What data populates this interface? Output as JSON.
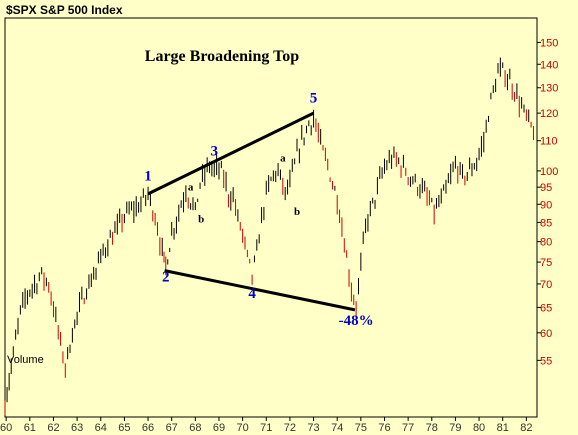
{
  "header": {
    "title": "$SPX S&P 500 Index"
  },
  "volume_label": "Volume",
  "colors": {
    "background": "#ffffc8",
    "plot_border": "#000000",
    "bars": "#000000",
    "down_bars": "#cc0000",
    "annotation": "#0000cc",
    "trendline": "#000000",
    "axis_text": "#cc0000",
    "xaxis_text": "#333333"
  },
  "chart_data": {
    "type": "bar",
    "title": "Large Broadening Top",
    "y_scale": "log",
    "ylim": [
      46,
      162
    ],
    "xlim": [
      59.95,
      82.45
    ],
    "x_ticks": [
      60,
      61,
      62,
      63,
      64,
      65,
      66,
      67,
      68,
      69,
      70,
      71,
      72,
      73,
      74,
      75,
      76,
      77,
      78,
      79,
      80,
      81,
      82
    ],
    "y_ticks": [
      55,
      60,
      65,
      70,
      75,
      80,
      85,
      90,
      95,
      100,
      110,
      120,
      130,
      140,
      150
    ],
    "series": [
      {
        "values": [
          [
            59.95,
            48
          ],
          [
            60.3,
            56
          ],
          [
            60.6,
            64
          ],
          [
            60.9,
            68
          ],
          [
            61.2,
            70
          ],
          [
            61.5,
            72
          ],
          [
            61.8,
            70
          ],
          [
            62.0,
            65
          ],
          [
            62.3,
            58
          ],
          [
            62.5,
            54
          ],
          [
            62.8,
            60
          ],
          [
            63.1,
            65
          ],
          [
            63.4,
            69
          ],
          [
            63.7,
            72
          ],
          [
            64.0,
            76
          ],
          [
            64.3,
            80
          ],
          [
            64.6,
            82
          ],
          [
            64.9,
            86
          ],
          [
            65.2,
            88
          ],
          [
            65.5,
            89
          ],
          [
            65.8,
            91
          ],
          [
            66.0,
            93
          ],
          [
            66.2,
            89
          ],
          [
            66.4,
            84
          ],
          [
            66.6,
            77
          ],
          [
            66.75,
            74
          ],
          [
            67.0,
            82
          ],
          [
            67.2,
            86
          ],
          [
            67.4,
            90
          ],
          [
            67.6,
            94
          ],
          [
            67.8,
            91
          ],
          [
            68.0,
            88
          ],
          [
            68.2,
            96
          ],
          [
            68.4,
            99
          ],
          [
            68.6,
            102
          ],
          [
            68.8,
            100
          ],
          [
            69.0,
            101
          ],
          [
            69.2,
            98
          ],
          [
            69.4,
            93
          ],
          [
            69.6,
            92
          ],
          [
            69.8,
            86
          ],
          [
            70.0,
            82
          ],
          [
            70.2,
            76
          ],
          [
            70.4,
            72
          ],
          [
            70.6,
            77
          ],
          [
            70.8,
            86
          ],
          [
            71.0,
            93
          ],
          [
            71.2,
            97
          ],
          [
            71.4,
            100
          ],
          [
            71.6,
            98
          ],
          [
            71.8,
            93
          ],
          [
            72.0,
            96
          ],
          [
            72.2,
            102
          ],
          [
            72.4,
            108
          ],
          [
            72.6,
            112
          ],
          [
            72.8,
            116
          ],
          [
            73.0,
            118
          ],
          [
            73.2,
            112
          ],
          [
            73.4,
            106
          ],
          [
            73.6,
            102
          ],
          [
            73.8,
            96
          ],
          [
            74.0,
            92
          ],
          [
            74.2,
            84
          ],
          [
            74.4,
            76
          ],
          [
            74.6,
            69
          ],
          [
            74.8,
            65
          ],
          [
            75.0,
            74
          ],
          [
            75.2,
            84
          ],
          [
            75.4,
            88
          ],
          [
            75.6,
            92
          ],
          [
            75.8,
            97
          ],
          [
            76.0,
            101
          ],
          [
            76.3,
            104
          ],
          [
            76.6,
            103
          ],
          [
            76.9,
            100
          ],
          [
            77.2,
            97
          ],
          [
            77.5,
            95
          ],
          [
            77.8,
            92
          ],
          [
            78.1,
            88
          ],
          [
            78.4,
            91
          ],
          [
            78.7,
            96
          ],
          [
            79.0,
            102
          ],
          [
            79.3,
            98
          ],
          [
            79.6,
            100
          ],
          [
            79.9,
            103
          ],
          [
            80.2,
            110
          ],
          [
            80.5,
            125
          ],
          [
            80.8,
            136
          ],
          [
            81.0,
            137
          ],
          [
            81.3,
            133
          ],
          [
            81.6,
            127
          ],
          [
            81.9,
            120
          ],
          [
            82.2,
            115
          ],
          [
            82.4,
            112
          ]
        ]
      }
    ],
    "annotations": [
      {
        "text": "1",
        "x": 66.0,
        "y": 97
      },
      {
        "text": "2",
        "x": 66.75,
        "y": 70.5
      },
      {
        "text": "3",
        "x": 68.8,
        "y": 105
      },
      {
        "text": "4",
        "x": 70.4,
        "y": 67
      },
      {
        "text": "5",
        "x": 73.0,
        "y": 124
      },
      {
        "text": "a",
        "x": 67.8,
        "y": 94
      },
      {
        "text": "b",
        "x": 68.25,
        "y": 85
      },
      {
        "text": "a",
        "x": 71.7,
        "y": 103
      },
      {
        "text": "b",
        "x": 72.3,
        "y": 87
      },
      {
        "text": "-48%",
        "x": 74.8,
        "y": 61.5
      }
    ],
    "trendlines": [
      {
        "points": [
          [
            66.0,
            93
          ],
          [
            73.0,
            120
          ]
        ]
      },
      {
        "points": [
          [
            66.7,
            73
          ],
          [
            74.75,
            64.5
          ]
        ]
      }
    ]
  }
}
